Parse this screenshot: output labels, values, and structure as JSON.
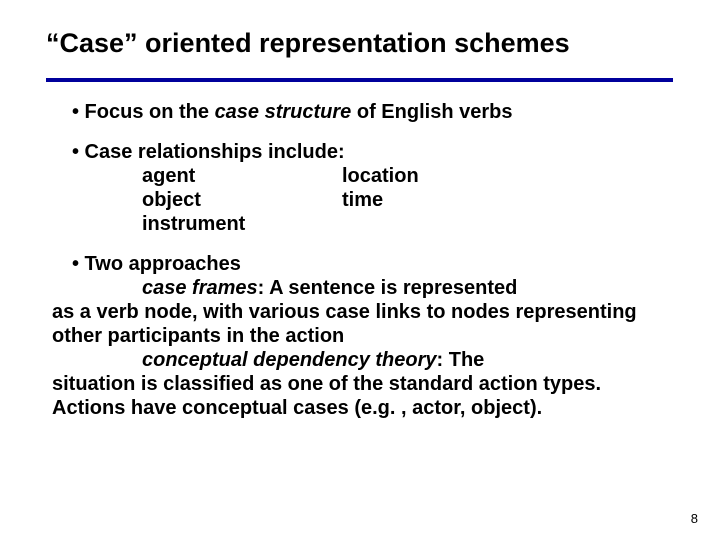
{
  "colors": {
    "background": "#ffffff",
    "text": "#000000",
    "rule": "#00009c"
  },
  "typography": {
    "title_fontsize": 27,
    "body_fontsize": 20,
    "pagenum_fontsize": 13,
    "bold": true
  },
  "title": "“Case” oriented representation schemes",
  "bullet1": {
    "prefix": "• Focus on the ",
    "em": "case structure",
    "suffix": " of English verbs"
  },
  "bullet2": {
    "lead": "• Case relationships include:",
    "rows": [
      {
        "c1": "agent",
        "c2": "location"
      },
      {
        "c1": "object",
        "c2": "time"
      },
      {
        "c1": "instrument",
        "c2": ""
      }
    ]
  },
  "bullet3": {
    "lead": "• Two approaches",
    "cf_label": "case frames",
    "cf_line1": ": A sentence is represented",
    "cf_rest": "as a verb node, with various case links to nodes representing other participants in the action",
    "cdt_label": "conceptual dependency theory",
    "cdt_line1": ": The",
    "cdt_rest": "situation is classified as one of the standard action types. Actions have conceptual cases (e.g. , actor, object)."
  },
  "pagenum": "8"
}
